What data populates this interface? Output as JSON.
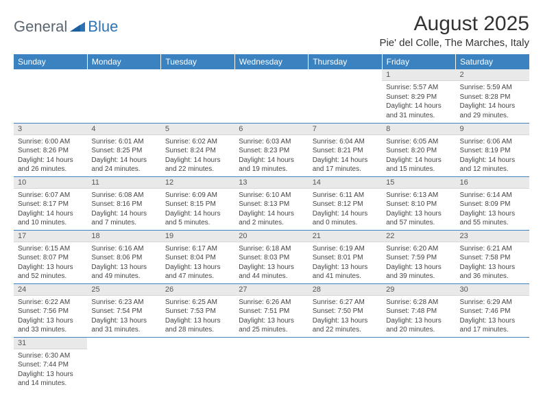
{
  "brand": {
    "part1": "General",
    "part2": "Blue"
  },
  "title": "August 2025",
  "location": "Pie' del Colle, The Marches, Italy",
  "colors": {
    "header_bg": "#3b83c0",
    "header_text": "#ffffff",
    "daynum_bg": "#e9e9e9",
    "border": "#3b83c0",
    "brand_gray": "#5b6670",
    "brand_blue": "#2d72b5"
  },
  "weekdays": [
    "Sunday",
    "Monday",
    "Tuesday",
    "Wednesday",
    "Thursday",
    "Friday",
    "Saturday"
  ],
  "grid": [
    [
      null,
      null,
      null,
      null,
      null,
      {
        "n": "1",
        "sr": "Sunrise: 5:57 AM",
        "ss": "Sunset: 8:29 PM",
        "d1": "Daylight: 14 hours",
        "d2": "and 31 minutes."
      },
      {
        "n": "2",
        "sr": "Sunrise: 5:59 AM",
        "ss": "Sunset: 8:28 PM",
        "d1": "Daylight: 14 hours",
        "d2": "and 29 minutes."
      }
    ],
    [
      {
        "n": "3",
        "sr": "Sunrise: 6:00 AM",
        "ss": "Sunset: 8:26 PM",
        "d1": "Daylight: 14 hours",
        "d2": "and 26 minutes."
      },
      {
        "n": "4",
        "sr": "Sunrise: 6:01 AM",
        "ss": "Sunset: 8:25 PM",
        "d1": "Daylight: 14 hours",
        "d2": "and 24 minutes."
      },
      {
        "n": "5",
        "sr": "Sunrise: 6:02 AM",
        "ss": "Sunset: 8:24 PM",
        "d1": "Daylight: 14 hours",
        "d2": "and 22 minutes."
      },
      {
        "n": "6",
        "sr": "Sunrise: 6:03 AM",
        "ss": "Sunset: 8:23 PM",
        "d1": "Daylight: 14 hours",
        "d2": "and 19 minutes."
      },
      {
        "n": "7",
        "sr": "Sunrise: 6:04 AM",
        "ss": "Sunset: 8:21 PM",
        "d1": "Daylight: 14 hours",
        "d2": "and 17 minutes."
      },
      {
        "n": "8",
        "sr": "Sunrise: 6:05 AM",
        "ss": "Sunset: 8:20 PM",
        "d1": "Daylight: 14 hours",
        "d2": "and 15 minutes."
      },
      {
        "n": "9",
        "sr": "Sunrise: 6:06 AM",
        "ss": "Sunset: 8:19 PM",
        "d1": "Daylight: 14 hours",
        "d2": "and 12 minutes."
      }
    ],
    [
      {
        "n": "10",
        "sr": "Sunrise: 6:07 AM",
        "ss": "Sunset: 8:17 PM",
        "d1": "Daylight: 14 hours",
        "d2": "and 10 minutes."
      },
      {
        "n": "11",
        "sr": "Sunrise: 6:08 AM",
        "ss": "Sunset: 8:16 PM",
        "d1": "Daylight: 14 hours",
        "d2": "and 7 minutes."
      },
      {
        "n": "12",
        "sr": "Sunrise: 6:09 AM",
        "ss": "Sunset: 8:15 PM",
        "d1": "Daylight: 14 hours",
        "d2": "and 5 minutes."
      },
      {
        "n": "13",
        "sr": "Sunrise: 6:10 AM",
        "ss": "Sunset: 8:13 PM",
        "d1": "Daylight: 14 hours",
        "d2": "and 2 minutes."
      },
      {
        "n": "14",
        "sr": "Sunrise: 6:11 AM",
        "ss": "Sunset: 8:12 PM",
        "d1": "Daylight: 14 hours",
        "d2": "and 0 minutes."
      },
      {
        "n": "15",
        "sr": "Sunrise: 6:13 AM",
        "ss": "Sunset: 8:10 PM",
        "d1": "Daylight: 13 hours",
        "d2": "and 57 minutes."
      },
      {
        "n": "16",
        "sr": "Sunrise: 6:14 AM",
        "ss": "Sunset: 8:09 PM",
        "d1": "Daylight: 13 hours",
        "d2": "and 55 minutes."
      }
    ],
    [
      {
        "n": "17",
        "sr": "Sunrise: 6:15 AM",
        "ss": "Sunset: 8:07 PM",
        "d1": "Daylight: 13 hours",
        "d2": "and 52 minutes."
      },
      {
        "n": "18",
        "sr": "Sunrise: 6:16 AM",
        "ss": "Sunset: 8:06 PM",
        "d1": "Daylight: 13 hours",
        "d2": "and 49 minutes."
      },
      {
        "n": "19",
        "sr": "Sunrise: 6:17 AM",
        "ss": "Sunset: 8:04 PM",
        "d1": "Daylight: 13 hours",
        "d2": "and 47 minutes."
      },
      {
        "n": "20",
        "sr": "Sunrise: 6:18 AM",
        "ss": "Sunset: 8:03 PM",
        "d1": "Daylight: 13 hours",
        "d2": "and 44 minutes."
      },
      {
        "n": "21",
        "sr": "Sunrise: 6:19 AM",
        "ss": "Sunset: 8:01 PM",
        "d1": "Daylight: 13 hours",
        "d2": "and 41 minutes."
      },
      {
        "n": "22",
        "sr": "Sunrise: 6:20 AM",
        "ss": "Sunset: 7:59 PM",
        "d1": "Daylight: 13 hours",
        "d2": "and 39 minutes."
      },
      {
        "n": "23",
        "sr": "Sunrise: 6:21 AM",
        "ss": "Sunset: 7:58 PM",
        "d1": "Daylight: 13 hours",
        "d2": "and 36 minutes."
      }
    ],
    [
      {
        "n": "24",
        "sr": "Sunrise: 6:22 AM",
        "ss": "Sunset: 7:56 PM",
        "d1": "Daylight: 13 hours",
        "d2": "and 33 minutes."
      },
      {
        "n": "25",
        "sr": "Sunrise: 6:23 AM",
        "ss": "Sunset: 7:54 PM",
        "d1": "Daylight: 13 hours",
        "d2": "and 31 minutes."
      },
      {
        "n": "26",
        "sr": "Sunrise: 6:25 AM",
        "ss": "Sunset: 7:53 PM",
        "d1": "Daylight: 13 hours",
        "d2": "and 28 minutes."
      },
      {
        "n": "27",
        "sr": "Sunrise: 6:26 AM",
        "ss": "Sunset: 7:51 PM",
        "d1": "Daylight: 13 hours",
        "d2": "and 25 minutes."
      },
      {
        "n": "28",
        "sr": "Sunrise: 6:27 AM",
        "ss": "Sunset: 7:50 PM",
        "d1": "Daylight: 13 hours",
        "d2": "and 22 minutes."
      },
      {
        "n": "29",
        "sr": "Sunrise: 6:28 AM",
        "ss": "Sunset: 7:48 PM",
        "d1": "Daylight: 13 hours",
        "d2": "and 20 minutes."
      },
      {
        "n": "30",
        "sr": "Sunrise: 6:29 AM",
        "ss": "Sunset: 7:46 PM",
        "d1": "Daylight: 13 hours",
        "d2": "and 17 minutes."
      }
    ],
    [
      {
        "n": "31",
        "sr": "Sunrise: 6:30 AM",
        "ss": "Sunset: 7:44 PM",
        "d1": "Daylight: 13 hours",
        "d2": "and 14 minutes."
      },
      null,
      null,
      null,
      null,
      null,
      null
    ]
  ]
}
